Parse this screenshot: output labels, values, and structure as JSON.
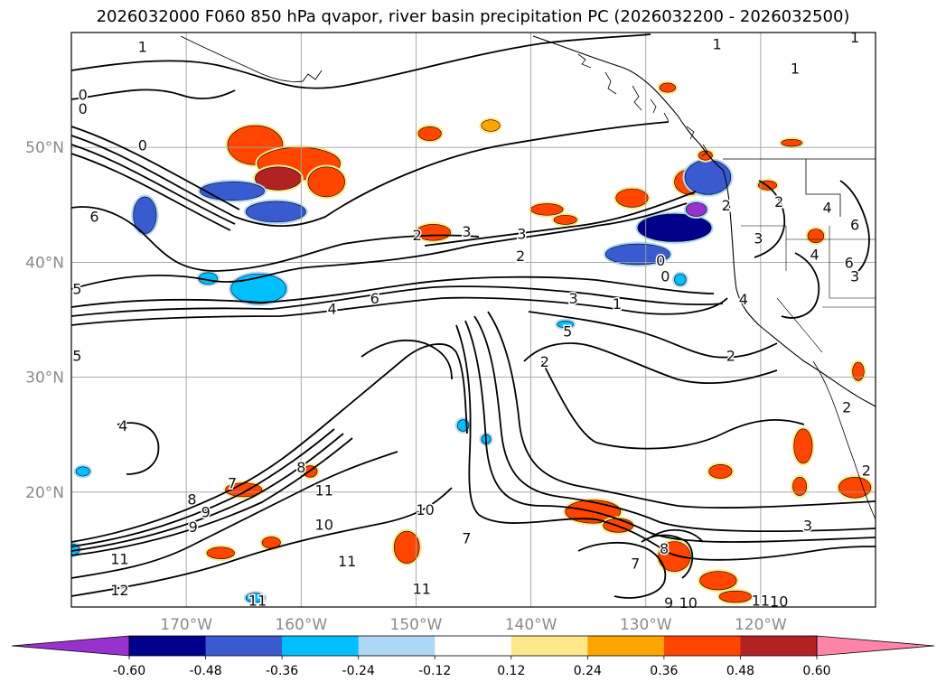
{
  "chart_data": {
    "type": "contour-map",
    "title": "2026032000 F060 850 hPa qvapor, river basin precipitation PC (2026032200 - 2026032500)",
    "lon_range": [
      -180,
      -110
    ],
    "lat_range": [
      10,
      60
    ],
    "lat_ticks": [
      {
        "value": 50,
        "label": "50°N"
      },
      {
        "value": 40,
        "label": "40°N"
      },
      {
        "value": 30,
        "label": "30°N"
      },
      {
        "value": 20,
        "label": "20°N"
      }
    ],
    "lon_ticks": [
      {
        "value": -170,
        "label": "170°W"
      },
      {
        "value": -160,
        "label": "160°W"
      },
      {
        "value": -150,
        "label": "150°W"
      },
      {
        "value": -140,
        "label": "140°W"
      },
      {
        "value": -130,
        "label": "130°W"
      },
      {
        "value": -120,
        "label": "120°W"
      }
    ],
    "colorbar": {
      "levels": [
        "-0.60",
        "-0.48",
        "-0.36",
        "-0.24",
        "-0.12",
        "0.12",
        "0.24",
        "0.36",
        "0.48",
        "0.60"
      ],
      "colors": [
        "#9932cc",
        "#00008b",
        "#3a5bd0",
        "#00bfff",
        "#add8f5",
        "#ffffff",
        "#ffe88a",
        "#ffa500",
        "#ff4500",
        "#b22222",
        "#ff85a8"
      ],
      "extend": "both"
    },
    "contour_labels": [
      {
        "lon": -173.8,
        "lat": 58.8,
        "text": "1"
      },
      {
        "lon": -123.8,
        "lat": 59.0,
        "text": "1"
      },
      {
        "lon": -111.8,
        "lat": 59.6,
        "text": "1"
      },
      {
        "lon": -117.0,
        "lat": 56.9,
        "text": "1"
      },
      {
        "lon": -179.0,
        "lat": 54.6,
        "text": "0"
      },
      {
        "lon": -179.0,
        "lat": 53.4,
        "text": "0"
      },
      {
        "lon": -173.8,
        "lat": 50.2,
        "text": "0"
      },
      {
        "lon": -178.0,
        "lat": 44.0,
        "text": "6"
      },
      {
        "lon": -179.5,
        "lat": 37.7,
        "text": "5"
      },
      {
        "lon": -179.5,
        "lat": 31.9,
        "text": "5"
      },
      {
        "lon": -175.5,
        "lat": 25.8,
        "text": "4"
      },
      {
        "lon": -149.9,
        "lat": 42.4,
        "text": "2"
      },
      {
        "lon": -145.6,
        "lat": 42.7,
        "text": "3"
      },
      {
        "lon": -140.8,
        "lat": 42.5,
        "text": "3"
      },
      {
        "lon": -140.9,
        "lat": 40.6,
        "text": "2"
      },
      {
        "lon": -128.7,
        "lat": 40.2,
        "text": "0"
      },
      {
        "lon": -128.3,
        "lat": 38.8,
        "text": "0"
      },
      {
        "lon": -136.3,
        "lat": 36.9,
        "text": "3"
      },
      {
        "lon": -132.5,
        "lat": 36.4,
        "text": "1"
      },
      {
        "lon": -136.8,
        "lat": 34.0,
        "text": "5"
      },
      {
        "lon": -157.3,
        "lat": 36.0,
        "text": "4"
      },
      {
        "lon": -153.6,
        "lat": 36.9,
        "text": "6"
      },
      {
        "lon": -138.8,
        "lat": 31.4,
        "text": "2"
      },
      {
        "lon": -123.0,
        "lat": 45.0,
        "text": "2"
      },
      {
        "lon": -118.4,
        "lat": 45.3,
        "text": "2"
      },
      {
        "lon": -114.2,
        "lat": 44.8,
        "text": "4"
      },
      {
        "lon": -120.2,
        "lat": 42.1,
        "text": "3"
      },
      {
        "lon": -115.3,
        "lat": 40.7,
        "text": "4"
      },
      {
        "lon": -111.8,
        "lat": 38.8,
        "text": "3"
      },
      {
        "lon": -111.8,
        "lat": 43.3,
        "text": "6"
      },
      {
        "lon": -112.3,
        "lat": 40.0,
        "text": "6"
      },
      {
        "lon": -121.5,
        "lat": 36.8,
        "text": "4"
      },
      {
        "lon": -122.6,
        "lat": 31.9,
        "text": "2"
      },
      {
        "lon": -112.5,
        "lat": 27.4,
        "text": "2"
      },
      {
        "lon": -110.8,
        "lat": 21.9,
        "text": "2"
      },
      {
        "lon": -115.9,
        "lat": 17.1,
        "text": "3"
      },
      {
        "lon": -160.0,
        "lat": 22.2,
        "text": "8"
      },
      {
        "lon": -166.0,
        "lat": 20.8,
        "text": "7"
      },
      {
        "lon": -158.0,
        "lat": 20.2,
        "text": "11"
      },
      {
        "lon": -169.5,
        "lat": 19.4,
        "text": "8"
      },
      {
        "lon": -168.3,
        "lat": 18.3,
        "text": "9"
      },
      {
        "lon": -169.4,
        "lat": 17.0,
        "text": "9"
      },
      {
        "lon": -175.8,
        "lat": 14.2,
        "text": "11"
      },
      {
        "lon": -175.8,
        "lat": 11.5,
        "text": "12"
      },
      {
        "lon": -158.0,
        "lat": 17.2,
        "text": "10"
      },
      {
        "lon": -149.2,
        "lat": 18.5,
        "text": "10"
      },
      {
        "lon": -145.6,
        "lat": 16.0,
        "text": "7"
      },
      {
        "lon": -156.0,
        "lat": 14.0,
        "text": "11"
      },
      {
        "lon": -149.5,
        "lat": 11.6,
        "text": "11"
      },
      {
        "lon": -163.8,
        "lat": 10.6,
        "text": "11"
      },
      {
        "lon": -128.4,
        "lat": 15.1,
        "text": "8"
      },
      {
        "lon": -130.9,
        "lat": 13.8,
        "text": "7"
      },
      {
        "lon": -128.0,
        "lat": 10.4,
        "text": "9"
      },
      {
        "lon": -126.3,
        "lat": 10.4,
        "text": "10"
      },
      {
        "lon": -118.4,
        "lat": 10.5,
        "text": "10"
      },
      {
        "lon": -120.0,
        "lat": 10.6,
        "text": "11"
      }
    ],
    "anomaly_regions": [
      {
        "lon": -164.0,
        "lat": 50.2,
        "rlon": 2.4,
        "rlat": 1.7,
        "value": 0.4
      },
      {
        "lon": -160.2,
        "lat": 48.6,
        "rlon": 3.6,
        "rlat": 1.4,
        "value": 0.42
      },
      {
        "lon": -162.0,
        "lat": 47.3,
        "rlon": 2.0,
        "rlat": 1.0,
        "value": 0.5
      },
      {
        "lon": -157.8,
        "lat": 47.0,
        "rlon": 1.6,
        "rlat": 1.3,
        "value": 0.4
      },
      {
        "lon": -166.0,
        "lat": 46.2,
        "rlon": 2.8,
        "rlat": 0.8,
        "value": -0.4
      },
      {
        "lon": -162.2,
        "lat": 44.4,
        "rlon": 2.6,
        "rlat": 0.9,
        "value": -0.42
      },
      {
        "lon": -173.6,
        "lat": 44.1,
        "rlon": 1.0,
        "rlat": 1.6,
        "value": -0.42
      },
      {
        "lon": -163.7,
        "lat": 37.7,
        "rlon": 2.4,
        "rlat": 1.3,
        "value": -0.34
      },
      {
        "lon": -168.1,
        "lat": 38.6,
        "rlon": 0.8,
        "rlat": 0.5,
        "value": -0.3
      },
      {
        "lon": -148.5,
        "lat": 42.6,
        "rlon": 1.5,
        "rlat": 0.7,
        "value": 0.36
      },
      {
        "lon": -148.8,
        "lat": 51.2,
        "rlon": 1.0,
        "rlat": 0.6,
        "value": 0.38
      },
      {
        "lon": -143.5,
        "lat": 51.9,
        "rlon": 0.8,
        "rlat": 0.5,
        "value": 0.3
      },
      {
        "lon": -138.6,
        "lat": 44.6,
        "rlon": 1.4,
        "rlat": 0.5,
        "value": 0.36
      },
      {
        "lon": -137.0,
        "lat": 43.7,
        "rlon": 1.0,
        "rlat": 0.4,
        "value": 0.36
      },
      {
        "lon": -131.2,
        "lat": 45.6,
        "rlon": 1.4,
        "rlat": 0.8,
        "value": 0.36
      },
      {
        "lon": -126.1,
        "lat": 47.0,
        "rlon": 1.4,
        "rlat": 1.1,
        "value": 0.38
      },
      {
        "lon": -124.6,
        "lat": 47.4,
        "rlon": 2.0,
        "rlat": 1.5,
        "value": -0.48
      },
      {
        "lon": -127.5,
        "lat": 43.0,
        "rlon": 3.2,
        "rlat": 1.2,
        "value": -0.5
      },
      {
        "lon": -130.7,
        "lat": 40.7,
        "rlon": 2.8,
        "rlat": 0.9,
        "value": -0.48
      },
      {
        "lon": -125.6,
        "lat": 44.6,
        "rlon": 0.9,
        "rlat": 0.6,
        "value": -0.62
      },
      {
        "lon": -128.1,
        "lat": 55.2,
        "rlon": 0.7,
        "rlat": 0.4,
        "value": 0.36
      },
      {
        "lon": -124.8,
        "lat": 49.3,
        "rlon": 0.6,
        "rlat": 0.4,
        "value": 0.36
      },
      {
        "lon": -117.3,
        "lat": 50.4,
        "rlon": 0.9,
        "rlat": 0.3,
        "value": 0.36
      },
      {
        "lon": -119.4,
        "lat": 46.7,
        "rlon": 0.8,
        "rlat": 0.4,
        "value": 0.36
      },
      {
        "lon": -115.2,
        "lat": 42.3,
        "rlon": 0.7,
        "rlat": 0.6,
        "value": 0.36
      },
      {
        "lon": -134.6,
        "lat": 18.3,
        "rlon": 2.4,
        "rlat": 1.0,
        "value": 0.4
      },
      {
        "lon": -132.4,
        "lat": 17.1,
        "rlon": 1.3,
        "rlat": 0.6,
        "value": 0.4
      },
      {
        "lon": -127.5,
        "lat": 14.4,
        "rlon": 1.4,
        "rlat": 1.3,
        "value": 0.4
      },
      {
        "lon": -123.7,
        "lat": 12.3,
        "rlon": 1.6,
        "rlat": 0.8,
        "value": 0.4
      },
      {
        "lon": -122.2,
        "lat": 10.9,
        "rlon": 1.4,
        "rlat": 0.5,
        "value": 0.4
      },
      {
        "lon": -123.5,
        "lat": 21.8,
        "rlon": 1.0,
        "rlat": 0.6,
        "value": 0.38
      },
      {
        "lon": -116.3,
        "lat": 24.0,
        "rlon": 0.8,
        "rlat": 1.5,
        "value": 0.4
      },
      {
        "lon": -116.6,
        "lat": 20.5,
        "rlon": 0.6,
        "rlat": 0.8,
        "value": 0.38
      },
      {
        "lon": -111.8,
        "lat": 20.4,
        "rlon": 1.4,
        "rlat": 0.9,
        "value": 0.4
      },
      {
        "lon": -111.5,
        "lat": 30.5,
        "rlon": 0.5,
        "rlat": 0.8,
        "value": 0.36
      },
      {
        "lon": -150.8,
        "lat": 15.2,
        "rlon": 1.1,
        "rlat": 1.4,
        "value": 0.38
      },
      {
        "lon": -159.2,
        "lat": 21.8,
        "rlon": 0.6,
        "rlat": 0.5,
        "value": 0.36
      },
      {
        "lon": -165.0,
        "lat": 20.2,
        "rlon": 1.6,
        "rlat": 0.6,
        "value": 0.36
      },
      {
        "lon": -167.0,
        "lat": 14.7,
        "rlon": 1.2,
        "rlat": 0.5,
        "value": 0.36
      },
      {
        "lon": -162.6,
        "lat": 15.6,
        "rlon": 0.8,
        "rlat": 0.5,
        "value": 0.36
      },
      {
        "lon": -145.9,
        "lat": 25.8,
        "rlon": 0.5,
        "rlat": 0.5,
        "value": -0.3
      },
      {
        "lon": -143.9,
        "lat": 24.6,
        "rlon": 0.4,
        "rlat": 0.4,
        "value": -0.3
      },
      {
        "lon": -137.0,
        "lat": 34.6,
        "rlon": 0.7,
        "rlat": 0.3,
        "value": -0.3
      },
      {
        "lon": -127.0,
        "lat": 38.5,
        "rlon": 0.5,
        "rlat": 0.5,
        "value": -0.36
      },
      {
        "lon": -164.0,
        "lat": 10.8,
        "rlon": 0.8,
        "rlat": 0.4,
        "value": -0.3
      },
      {
        "lon": -179.0,
        "lat": 21.8,
        "rlon": 0.6,
        "rlat": 0.4,
        "value": -0.3
      },
      {
        "lon": -180.0,
        "lat": 15.0,
        "rlon": 0.7,
        "rlat": 0.5,
        "value": -0.3
      }
    ]
  }
}
